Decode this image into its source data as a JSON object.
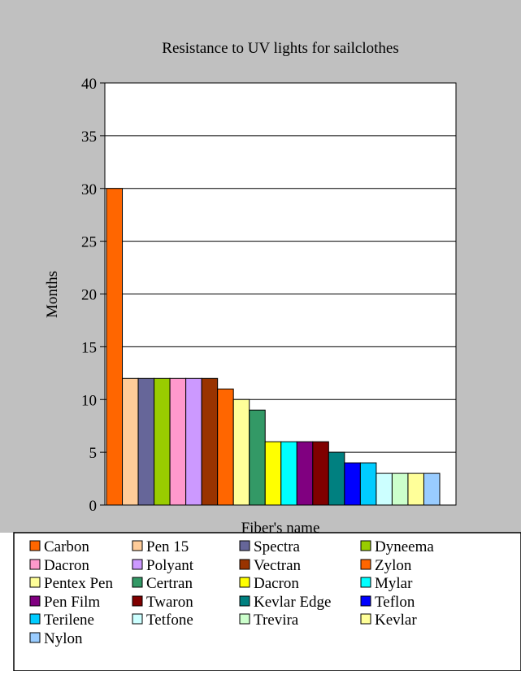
{
  "chart_data": {
    "type": "bar",
    "title": "Resistance to UV lights  for sailclothes",
    "xlabel": "Fiber's name",
    "ylabel": "Months",
    "ylim": [
      0,
      40
    ],
    "yticks": [
      0,
      5,
      10,
      15,
      20,
      25,
      30,
      35,
      40
    ],
    "grid": true,
    "legend_position": "bottom",
    "categories": [
      "Carbon",
      "Pen 15",
      "Spectra",
      "Dyneema",
      "Dacron",
      "Polyant",
      "Vectran",
      "Zylon",
      "Pentex Pen",
      "Certran",
      "Dacron",
      "Mylar",
      "Pen Film",
      "Twaron",
      "Kevlar Edge",
      "Teflon",
      "Terilene",
      "Tetfone",
      "Trevira",
      "Kevlar",
      "Nylon"
    ],
    "values": [
      30,
      12,
      12,
      12,
      12,
      12,
      12,
      11,
      10,
      9,
      6,
      6,
      6,
      6,
      5,
      4,
      4,
      3,
      3,
      3,
      3
    ],
    "colors": [
      "#ff6600",
      "#ffcc99",
      "#666699",
      "#99cc00",
      "#ff99cc",
      "#cc99ff",
      "#993300",
      "#ff6600",
      "#ffff99",
      "#339966",
      "#ffff00",
      "#00ffff",
      "#800080",
      "#800000",
      "#008080",
      "#0000ff",
      "#00ccff",
      "#ccffff",
      "#ccffcc",
      "#ffff99",
      "#99ccff"
    ]
  },
  "style": {
    "outer_background": "#c0c0c0",
    "plot_background": "#ffffff",
    "grid_color": "#000000"
  }
}
